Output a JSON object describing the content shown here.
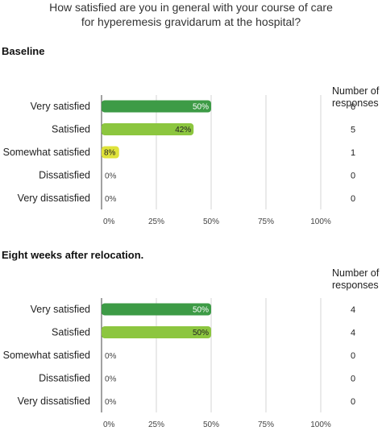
{
  "question": {
    "lines": [
      "How satisfied are you in general with your course of care",
      "for hyperemesis gravidarum at the hospital?"
    ]
  },
  "response_header": [
    "Number of",
    "responses"
  ],
  "colors": {
    "very_satisfied": "#3d9b46",
    "satisfied": "#8cc63f",
    "somewhat_satisfied": "#dfe33a",
    "grid": "#d6d6d6",
    "axis": "#444444"
  },
  "chart_data": [
    {
      "type": "bar",
      "orientation": "horizontal",
      "title": "Baseline",
      "categories": [
        "Very satisfied",
        "Satisfied",
        "Somewhat satisfied",
        "Dissatisfied",
        "Very dissatisfied"
      ],
      "values": [
        50,
        42,
        8,
        0,
        0
      ],
      "value_labels": [
        "50%",
        "42%",
        "8%",
        "0%",
        "0%"
      ],
      "counts": [
        "6",
        "5",
        "1",
        "0",
        "0"
      ],
      "xlim": [
        0,
        100
      ],
      "xticks": [
        "0%",
        "25%",
        "50%",
        "75%",
        "100%"
      ],
      "grid": true
    },
    {
      "type": "bar",
      "orientation": "horizontal",
      "title": "Eight weeks after relocation.",
      "categories": [
        "Very satisfied",
        "Satisfied",
        "Somewhat satisfied",
        "Dissatisfied",
        "Very dissatisfied"
      ],
      "values": [
        50,
        50,
        0,
        0,
        0
      ],
      "value_labels": [
        "50%",
        "50%",
        "0%",
        "0%",
        "0%"
      ],
      "counts": [
        "4",
        "4",
        "0",
        "0",
        "0"
      ],
      "xlim": [
        0,
        100
      ],
      "xticks": [
        "0%",
        "25%",
        "50%",
        "75%",
        "100%"
      ],
      "grid": true
    }
  ]
}
